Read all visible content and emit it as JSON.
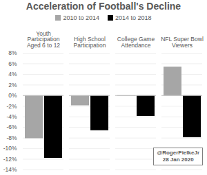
{
  "chart_data": {
    "type": "bar",
    "title": "Acceleration of Football's Decline",
    "categories": [
      "Youth Participation Aged 6 to 12",
      "High School Participation",
      "College Game Attendance",
      "NFL Super Bowl Viewers"
    ],
    "series": [
      {
        "name": "2010 to 2014",
        "color": "#a6a6a6",
        "values": [
          -8.1,
          -1.9,
          -0.1,
          5.4
        ]
      },
      {
        "name": "2014 to 2018",
        "color": "#000000",
        "values": [
          -11.8,
          -6.6,
          -3.9,
          -7.9
        ]
      }
    ],
    "ylim": [
      -14,
      8
    ],
    "yticks": [
      {
        "value": -14,
        "label": "-14%"
      },
      {
        "value": -12,
        "label": "-12%"
      },
      {
        "value": -10,
        "label": "-10%"
      },
      {
        "value": -8,
        "label": "-8%"
      },
      {
        "value": -6,
        "label": "-6%"
      },
      {
        "value": -4,
        "label": "-4%"
      },
      {
        "value": -2,
        "label": "-2%"
      },
      {
        "value": 0,
        "label": "0%"
      },
      {
        "value": 2,
        "label": "2%"
      },
      {
        "value": 4,
        "label": "4%"
      },
      {
        "value": 6,
        "label": "6%"
      },
      {
        "value": 8,
        "label": "8%"
      }
    ],
    "annotations": [
      "@RogerPielkeJr",
      "28 Jan 2020"
    ],
    "grid": true,
    "legend": "top"
  }
}
